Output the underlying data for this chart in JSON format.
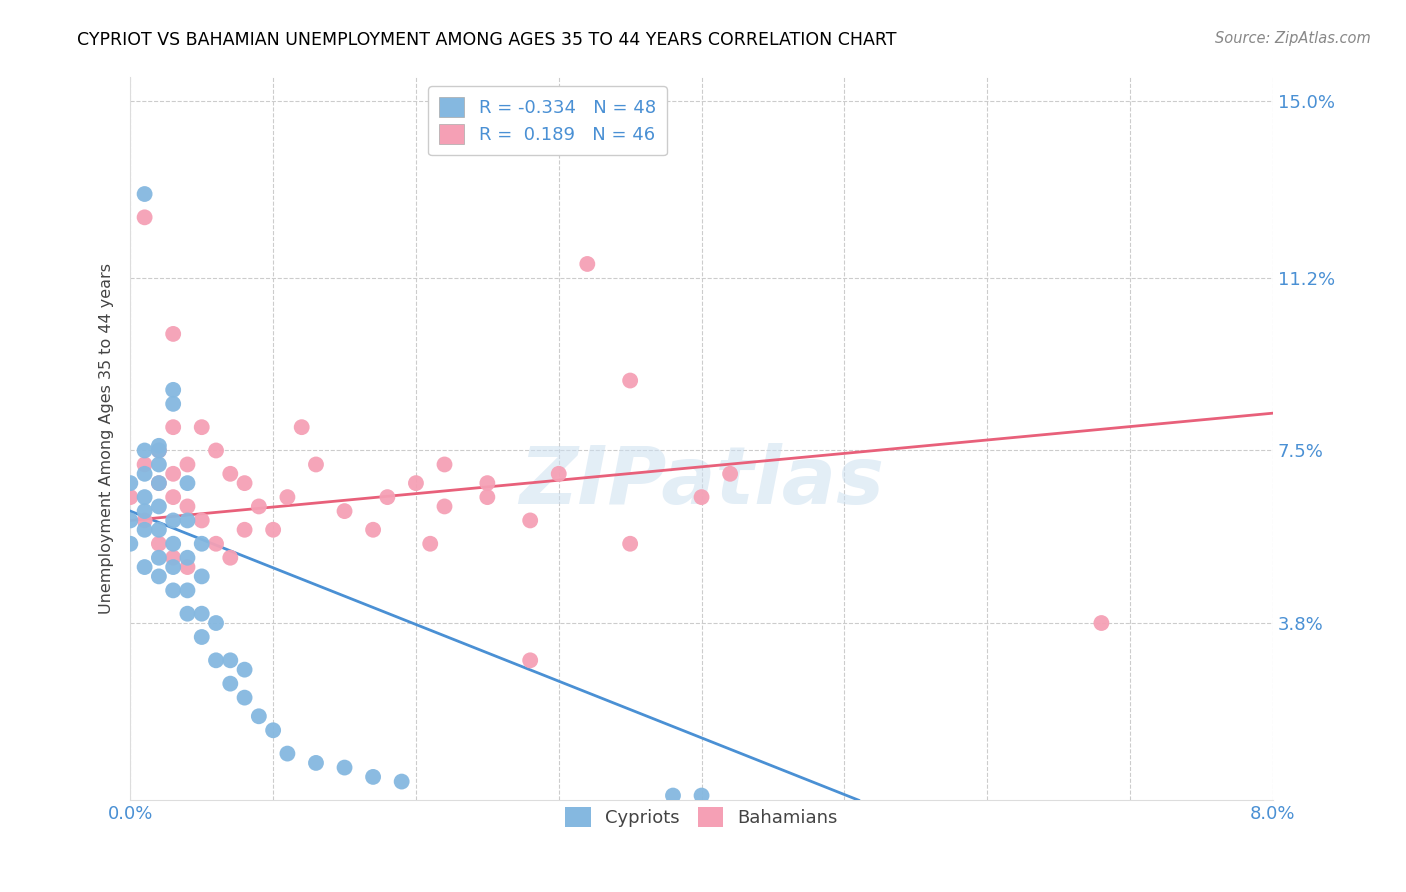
{
  "title": "CYPRIOT VS BAHAMIAN UNEMPLOYMENT AMONG AGES 35 TO 44 YEARS CORRELATION CHART",
  "source": "Source: ZipAtlas.com",
  "ylabel": "Unemployment Among Ages 35 to 44 years",
  "xlim": [
    0.0,
    0.08
  ],
  "ylim": [
    0.0,
    0.155
  ],
  "xtick_positions": [
    0.0,
    0.01,
    0.02,
    0.03,
    0.04,
    0.05,
    0.06,
    0.07,
    0.08
  ],
  "xticklabels": [
    "0.0%",
    "",
    "",
    "",
    "",
    "",
    "",
    "",
    "8.0%"
  ],
  "ytick_positions": [
    0.038,
    0.075,
    0.112,
    0.15
  ],
  "ytick_labels": [
    "3.8%",
    "7.5%",
    "11.2%",
    "15.0%"
  ],
  "cypriot_color": "#85b8e0",
  "bahamian_color": "#f5a0b5",
  "cypriot_line_color": "#4a90d4",
  "bahamian_line_color": "#e8607a",
  "legend_r_cypriot": "-0.334",
  "legend_n_cypriot": "48",
  "legend_r_bahamian": " 0.189",
  "legend_n_bahamian": "46",
  "watermark": "ZIPatlas",
  "cypriot_x": [
    0.0,
    0.0,
    0.0,
    0.001,
    0.001,
    0.001,
    0.001,
    0.001,
    0.001,
    0.002,
    0.002,
    0.002,
    0.002,
    0.002,
    0.002,
    0.002,
    0.003,
    0.003,
    0.003,
    0.003,
    0.003,
    0.004,
    0.004,
    0.004,
    0.004,
    0.005,
    0.005,
    0.005,
    0.006,
    0.006,
    0.007,
    0.007,
    0.008,
    0.008,
    0.009,
    0.01,
    0.011,
    0.013,
    0.015,
    0.017,
    0.019,
    0.038,
    0.04,
    0.001,
    0.002,
    0.003,
    0.004,
    0.005
  ],
  "cypriot_y": [
    0.055,
    0.06,
    0.068,
    0.05,
    0.058,
    0.062,
    0.065,
    0.07,
    0.075,
    0.048,
    0.052,
    0.058,
    0.063,
    0.068,
    0.072,
    0.076,
    0.045,
    0.05,
    0.055,
    0.06,
    0.088,
    0.04,
    0.045,
    0.052,
    0.06,
    0.035,
    0.04,
    0.048,
    0.03,
    0.038,
    0.025,
    0.03,
    0.022,
    0.028,
    0.018,
    0.015,
    0.01,
    0.008,
    0.007,
    0.005,
    0.004,
    0.001,
    0.001,
    0.13,
    0.075,
    0.085,
    0.068,
    0.055
  ],
  "bahamian_x": [
    0.0,
    0.001,
    0.001,
    0.002,
    0.002,
    0.002,
    0.003,
    0.003,
    0.003,
    0.003,
    0.004,
    0.004,
    0.004,
    0.005,
    0.005,
    0.006,
    0.006,
    0.007,
    0.007,
    0.008,
    0.008,
    0.009,
    0.01,
    0.011,
    0.012,
    0.013,
    0.015,
    0.017,
    0.018,
    0.02,
    0.021,
    0.022,
    0.025,
    0.028,
    0.03,
    0.032,
    0.035,
    0.022,
    0.025,
    0.028,
    0.035,
    0.04,
    0.042,
    0.068,
    0.001,
    0.003
  ],
  "bahamian_y": [
    0.065,
    0.06,
    0.072,
    0.055,
    0.068,
    0.075,
    0.052,
    0.065,
    0.07,
    0.08,
    0.05,
    0.063,
    0.072,
    0.06,
    0.08,
    0.055,
    0.075,
    0.052,
    0.07,
    0.058,
    0.068,
    0.063,
    0.058,
    0.065,
    0.08,
    0.072,
    0.062,
    0.058,
    0.065,
    0.068,
    0.055,
    0.063,
    0.065,
    0.06,
    0.07,
    0.115,
    0.09,
    0.072,
    0.068,
    0.03,
    0.055,
    0.065,
    0.07,
    0.038,
    0.125,
    0.1
  ],
  "cypriot_line_x0": 0.0,
  "cypriot_line_x1": 0.051,
  "cypriot_line_y0": 0.062,
  "cypriot_line_y1": 0.0,
  "bahamian_line_x0": 0.0,
  "bahamian_line_x1": 0.08,
  "bahamian_line_y0": 0.06,
  "bahamian_line_y1": 0.083
}
